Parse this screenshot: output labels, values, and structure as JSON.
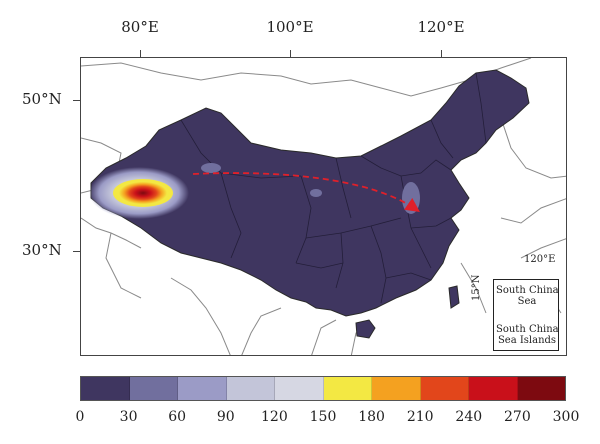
{
  "axes": {
    "lon_labels": [
      "80°E",
      "100°E",
      "120°E"
    ],
    "lat_labels": [
      "50°N",
      "30°N"
    ]
  },
  "inset": {
    "lon_label": "120°E",
    "lat_label": "15°N",
    "sea_label_line1": "South China",
    "sea_label_line2": "Sea",
    "islands_label_line1": "South China",
    "islands_label_line2": "Sea Islands"
  },
  "legend": {
    "ticks": [
      "0",
      "30",
      "60",
      "90",
      "120",
      "150",
      "180",
      "210",
      "240",
      "270",
      "300"
    ],
    "colors": [
      "#3f3660",
      "#716f9e",
      "#9b9bc6",
      "#c3c5d9",
      "#d6d7e3",
      "#f3e843",
      "#f4a120",
      "#e2461b",
      "#c9101a",
      "#7d0a10"
    ]
  },
  "colors": {
    "china_fill": "#3f3660",
    "border": "#2a2a2a",
    "arrow": "#e0202a",
    "country_outline": "#8a8a8a"
  },
  "map": {
    "hotspot_label": "",
    "arrow_desc": ""
  }
}
